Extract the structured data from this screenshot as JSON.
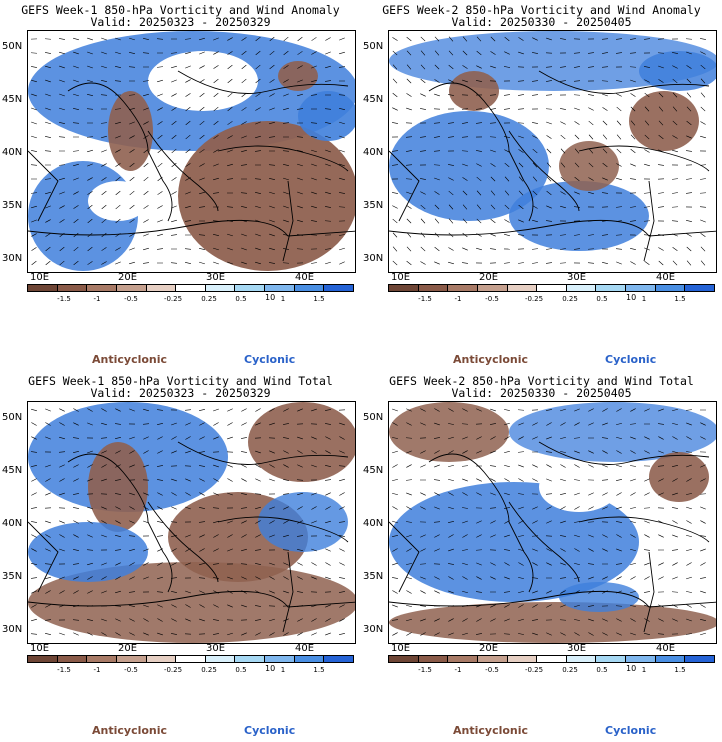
{
  "panels": [
    {
      "title1": "GEFS Week-1 850-hPa Vorticity and Wind Anomaly",
      "title2": "Valid: 20250323 - 20250329"
    },
    {
      "title1": "GEFS Week-2 850-hPa Vorticity and Wind Anomaly",
      "title2": "Valid: 20250330 - 20250405"
    },
    {
      "title1": "GEFS Week-1 850-hPa Vorticity and Wind Total",
      "title2": "Valid: 20250323 - 20250329"
    },
    {
      "title1": "GEFS Week-2 850-hPa Vorticity and Wind Total",
      "title2": "Valid: 20250330 - 20250405"
    }
  ],
  "axes": {
    "lat_labels": [
      "50N",
      "45N",
      "40N",
      "35N",
      "30N"
    ],
    "lon_labels": [
      "10E",
      "20E",
      "30E",
      "40E"
    ]
  },
  "colorbar": {
    "ticks": [
      "-1.5",
      "-1",
      "-0.5",
      "-0.25",
      "0.25",
      "0.5",
      "1",
      "1.5"
    ],
    "vector_ref": "10",
    "colors": [
      "#6e4535",
      "#8a5a48",
      "#a87a66",
      "#c5a08e",
      "#e6cfc3",
      "#ffffff",
      "#d9f0fb",
      "#a6d8f3",
      "#7fb7ee",
      "#4a8fe3",
      "#2563d6"
    ]
  },
  "legend": {
    "anticyclonic": "Anticyclonic",
    "cyclonic": "Cyclonic"
  },
  "colors": {
    "anticyclonic": "#7b4a37",
    "cyclonic": "#2a62c9",
    "blue_fill": "#3f7fdc",
    "brown_fill": "#8f6150"
  }
}
